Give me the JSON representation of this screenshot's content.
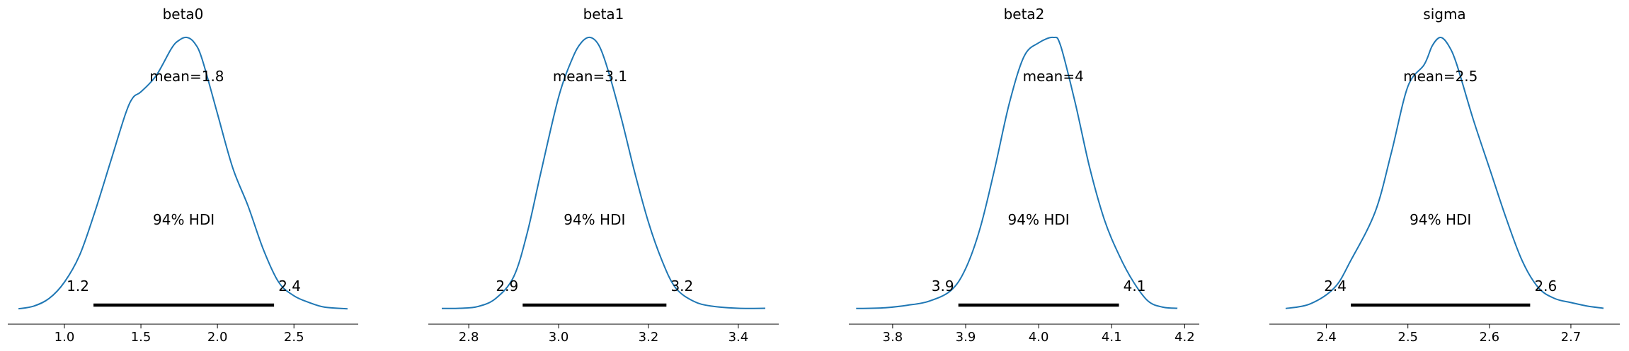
{
  "chart_data": [
    {
      "type": "area",
      "title": "beta0",
      "mean_label": "mean=1.8",
      "hdi_label": "94% HDI",
      "hdi": [
        1.19,
        2.37
      ],
      "hdi_tick_labels": [
        "1.2",
        "2.4"
      ],
      "xlim": [
        0.63,
        2.92
      ],
      "xticks": [
        1.0,
        1.5,
        2.0,
        2.5
      ],
      "xtick_labels": [
        "1.0",
        "1.5",
        "2.0",
        "2.5"
      ],
      "color": "#1f77b4",
      "density": {
        "x": [
          0.7,
          0.8,
          0.9,
          1.0,
          1.1,
          1.2,
          1.3,
          1.4,
          1.45,
          1.5,
          1.6,
          1.7,
          1.75,
          1.8,
          1.85,
          1.9,
          2.0,
          2.1,
          2.2,
          2.3,
          2.4,
          2.5,
          2.6,
          2.7,
          2.85
        ],
        "y": [
          0.002,
          0.012,
          0.04,
          0.1,
          0.2,
          0.36,
          0.54,
          0.72,
          0.78,
          0.8,
          0.86,
          0.96,
          0.99,
          1.0,
          0.98,
          0.92,
          0.72,
          0.52,
          0.38,
          0.22,
          0.1,
          0.05,
          0.025,
          0.008,
          0.002
        ]
      }
    },
    {
      "type": "area",
      "title": "beta1",
      "mean_label": "mean=3.1",
      "hdi_label": "94% HDI",
      "hdi": [
        2.92,
        3.24
      ],
      "hdi_tick_labels": [
        "2.9",
        "3.2"
      ],
      "xlim": [
        2.71,
        3.49
      ],
      "xticks": [
        2.8,
        3.0,
        3.2,
        3.4
      ],
      "xtick_labels": [
        "2.8",
        "3.0",
        "3.2",
        "3.4"
      ],
      "color": "#1f77b4",
      "density": {
        "x": [
          2.74,
          2.78,
          2.82,
          2.86,
          2.9,
          2.93,
          2.96,
          3.0,
          3.03,
          3.05,
          3.07,
          3.09,
          3.11,
          3.14,
          3.17,
          3.2,
          3.23,
          3.26,
          3.3,
          3.34,
          3.4,
          3.46
        ],
        "y": [
          0.003,
          0.004,
          0.01,
          0.04,
          0.12,
          0.28,
          0.5,
          0.78,
          0.92,
          0.98,
          1.0,
          0.97,
          0.88,
          0.7,
          0.5,
          0.32,
          0.18,
          0.08,
          0.03,
          0.012,
          0.004,
          0.004
        ]
      }
    },
    {
      "type": "area",
      "title": "beta2",
      "mean_label": "mean=4",
      "hdi_label": "94% HDI",
      "hdi": [
        3.89,
        4.11
      ],
      "hdi_tick_labels": [
        "3.9",
        "4.1"
      ],
      "xlim": [
        3.74,
        4.22
      ],
      "xticks": [
        3.8,
        3.9,
        4.0,
        4.1,
        4.2
      ],
      "xtick_labels": [
        "3.8",
        "3.9",
        "4.0",
        "4.1",
        "4.2"
      ],
      "color": "#1f77b4",
      "density": {
        "x": [
          3.75,
          3.79,
          3.82,
          3.85,
          3.88,
          3.9,
          3.92,
          3.94,
          3.96,
          3.98,
          4.0,
          4.02,
          4.03,
          4.05,
          4.07,
          4.09,
          4.11,
          4.13,
          4.15,
          4.17,
          4.19
        ],
        "y": [
          0.003,
          0.006,
          0.015,
          0.03,
          0.07,
          0.15,
          0.3,
          0.52,
          0.76,
          0.93,
          0.98,
          1.0,
          0.97,
          0.76,
          0.52,
          0.33,
          0.2,
          0.1,
          0.03,
          0.008,
          0.004
        ]
      }
    },
    {
      "type": "area",
      "title": "sigma",
      "mean_label": "mean=2.5",
      "hdi_label": "94% HDI",
      "hdi": [
        2.43,
        2.65
      ],
      "hdi_tick_labels": [
        "2.4",
        "2.6"
      ],
      "xlim": [
        2.33,
        2.76
      ],
      "xticks": [
        2.4,
        2.5,
        2.6,
        2.7
      ],
      "xtick_labels": [
        "2.4",
        "2.5",
        "2.6",
        "2.7"
      ],
      "color": "#1f77b4",
      "density": {
        "x": [
          2.35,
          2.38,
          2.41,
          2.43,
          2.46,
          2.48,
          2.5,
          2.52,
          2.53,
          2.54,
          2.55,
          2.56,
          2.58,
          2.6,
          2.62,
          2.64,
          2.66,
          2.68,
          2.7,
          2.72,
          2.74
        ],
        "y": [
          0.003,
          0.02,
          0.08,
          0.18,
          0.36,
          0.58,
          0.82,
          0.9,
          0.97,
          1.0,
          0.97,
          0.9,
          0.7,
          0.52,
          0.34,
          0.18,
          0.08,
          0.04,
          0.025,
          0.012,
          0.004
        ]
      }
    }
  ]
}
